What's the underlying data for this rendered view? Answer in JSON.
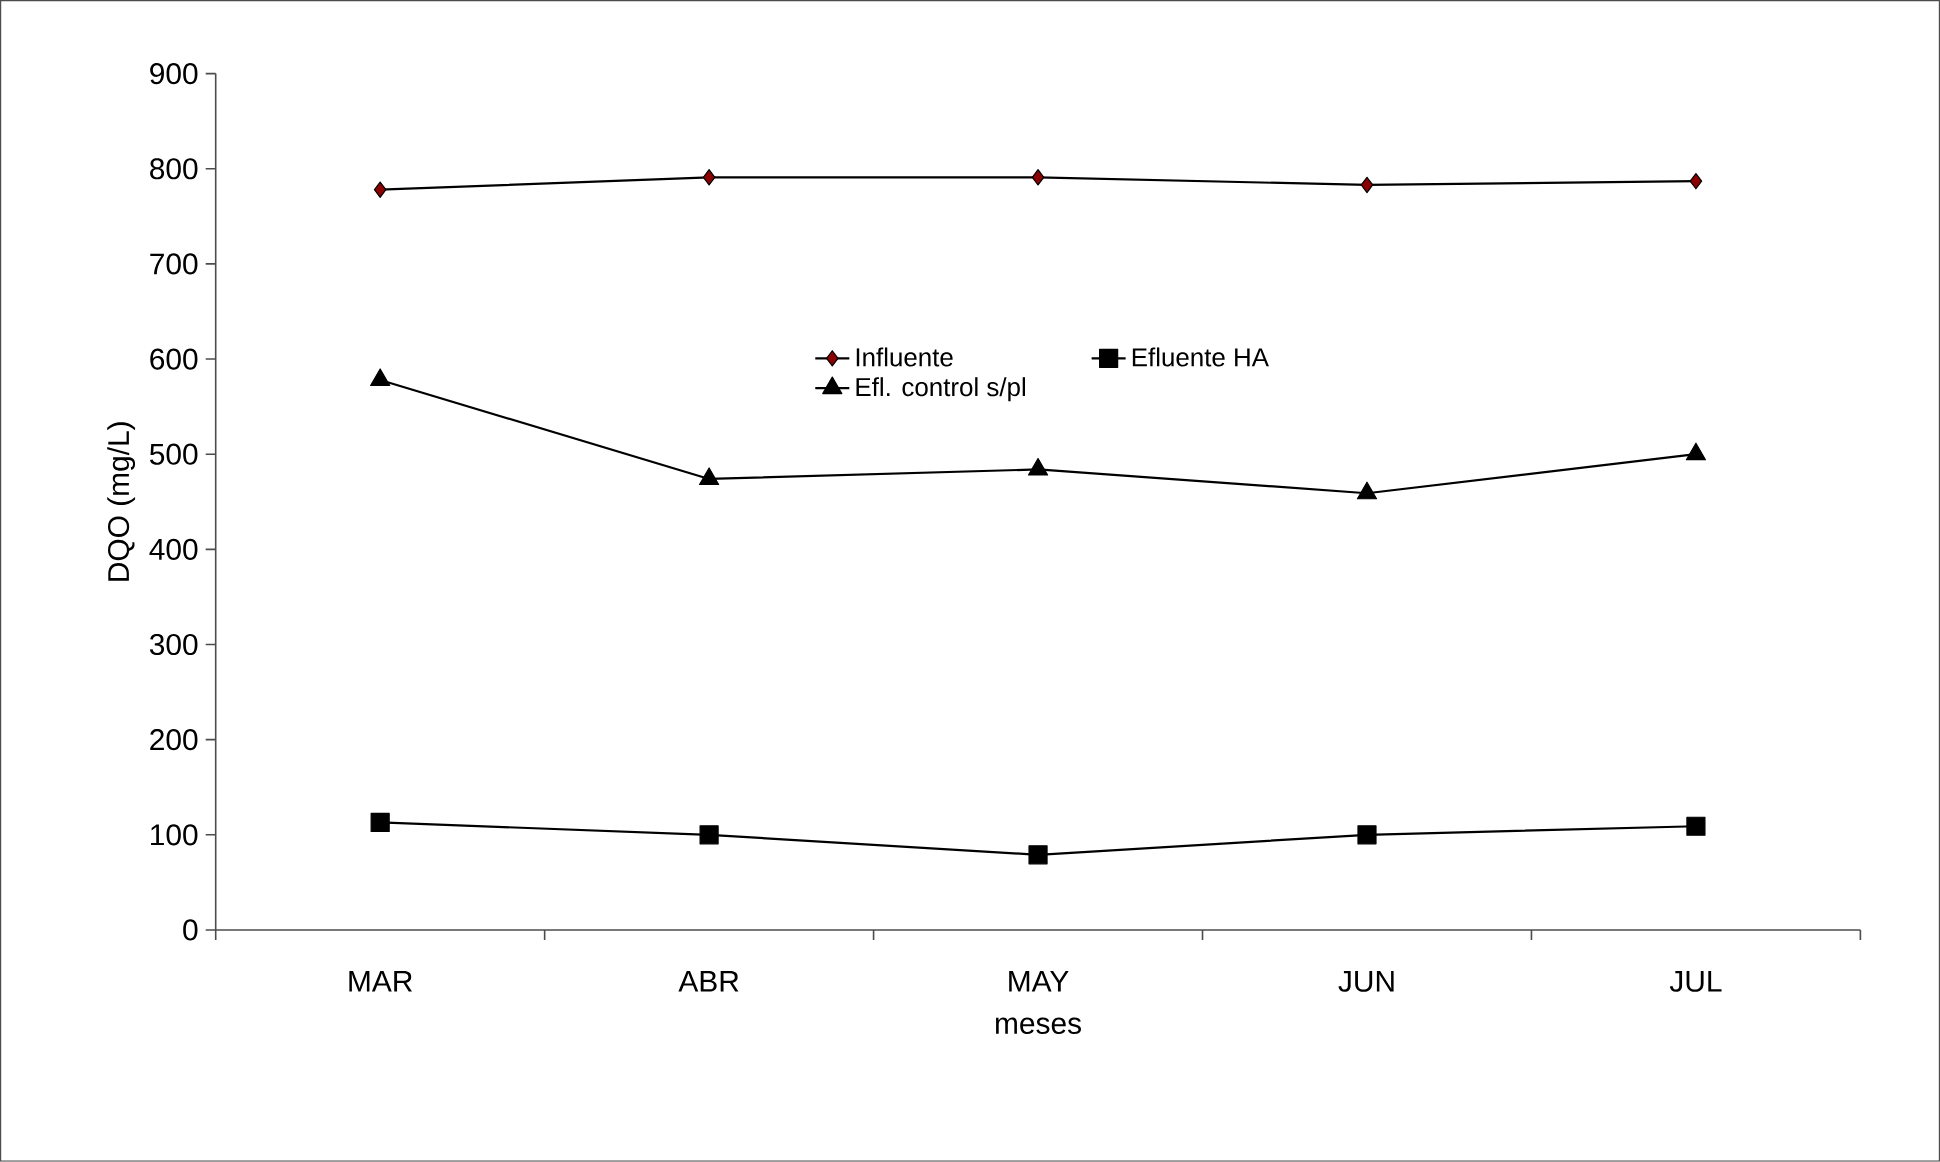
{
  "chart_data": {
    "type": "line",
    "xlabel": "meses",
    "ylabel": "DQO (mg/L)",
    "categories": [
      "MAR",
      "ABR",
      "MAY",
      "JUN",
      "JUL"
    ],
    "series": [
      {
        "name": "Influente",
        "color": "#8b0000",
        "marker": "diamond",
        "values": [
          778,
          791,
          791,
          783,
          787
        ]
      },
      {
        "name": "Efluente HA",
        "color": "#000000",
        "marker": "square",
        "values": [
          113,
          100,
          79,
          100,
          109
        ]
      },
      {
        "name": "Efl. control s/pl",
        "color": "#000000",
        "marker": "triangle",
        "values": [
          578,
          474,
          484,
          459,
          500
        ]
      }
    ],
    "ylim": [
      0,
      900
    ],
    "yticks": [
      0,
      100,
      200,
      300,
      400,
      500,
      600,
      700,
      800,
      900
    ],
    "grid": false,
    "legend": "top",
    "line_style": "solid"
  }
}
